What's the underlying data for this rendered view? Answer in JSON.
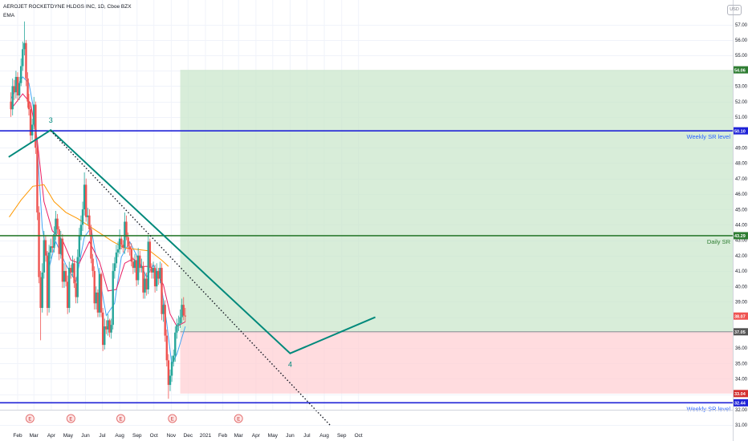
{
  "header": {
    "symbol_line": "AEROJET ROCKETDYNE HLDGS INC, 1D, Cboe BZX",
    "indicator": "EMA",
    "currency": "USD"
  },
  "colors": {
    "up": "#26a69a",
    "down": "#ef5350",
    "ema_short": "#42a5f5",
    "ema_mid": "#e91e63",
    "ema_long": "#ff9800",
    "pattern": "#00897b",
    "sr_blue": "#1e22d7",
    "sr_green": "#2e7d32",
    "profit_zone": "#c8e6c9",
    "loss_zone": "#ffcdd2"
  },
  "chart_data": {
    "type": "candlestick",
    "x_ticks": [
      "Feb",
      "Mar",
      "Apr",
      "May",
      "Jun",
      "Jul",
      "Aug",
      "Sep",
      "Oct",
      "Nov",
      "Dec",
      "2021",
      "Feb",
      "Mar",
      "Apr",
      "May",
      "Jun",
      "Jul",
      "Aug",
      "Sep",
      "Oct"
    ],
    "y_ticks": [
      31.0,
      32.0,
      33.0,
      34.0,
      35.0,
      36.0,
      37.0,
      38.0,
      39.0,
      40.0,
      41.0,
      42.0,
      43.0,
      44.0,
      45.0,
      46.0,
      47.0,
      48.0,
      49.0,
      50.0,
      51.0,
      52.0,
      53.0,
      54.0,
      55.0,
      56.0,
      57.0
    ],
    "ylim": [
      30.6,
      57.9
    ],
    "price_tags": [
      {
        "label": "54.06",
        "value": 54.06,
        "color": "#2e7d32"
      },
      {
        "label": "50.10",
        "value": 50.1,
        "color": "#1e22d7"
      },
      {
        "label": "43.29",
        "value": 43.29,
        "color": "#2e7d32"
      },
      {
        "label": "38.07",
        "value": 38.07,
        "color": "#ef5350"
      },
      {
        "label": "37.05",
        "value": 37.05,
        "color": "#555555"
      },
      {
        "label": "33.04",
        "value": 33.04,
        "color": "#d32f2f"
      },
      {
        "label": "32.44",
        "value": 32.44,
        "color": "#1e22d7"
      }
    ],
    "levels": [
      {
        "label": "Weekly SR level",
        "value": 50.1,
        "color": "#1e22d7"
      },
      {
        "label": "Daily SR",
        "value": 43.29,
        "color": "#2e7d32"
      },
      {
        "label": "Weekly SR level",
        "value": 32.44,
        "color": "#1e22d7"
      }
    ],
    "position": {
      "entry": 37.05,
      "target": 54.06,
      "stop": 33.04,
      "start": "2020-11-17",
      "end": "2021-10-31"
    },
    "wave_labels": [
      {
        "label": "3",
        "date": "2020-03-31",
        "value": 50.1
      },
      {
        "label": "4",
        "date": "2021-06-01",
        "value": 35.6
      }
    ],
    "pattern_path": [
      {
        "date": "2020-01-16",
        "value": 48.4
      },
      {
        "date": "2020-03-31",
        "value": 50.15
      },
      {
        "date": "2021-06-01",
        "value": 35.65
      },
      {
        "date": "2021-10-31",
        "value": 38.0
      }
    ],
    "trendline": [
      {
        "date": "2020-03-31",
        "value": 50.1
      },
      {
        "date": "2021-08-11",
        "value": 31.0
      }
    ],
    "earnings_markers": {
      "label": "E",
      "dates": [
        "2020-02-23",
        "2020-05-06",
        "2020-08-03",
        "2020-11-03",
        "2021-03-01"
      ]
    },
    "candles": {
      "x": [
        "2020-01-20",
        "2020-01-23",
        "2020-01-26",
        "2020-01-29",
        "2020-02-01",
        "2020-02-04",
        "2020-02-07",
        "2020-02-10",
        "2020-02-13",
        "2020-02-16",
        "2020-02-19",
        "2020-02-21",
        "2020-02-24",
        "2020-02-27",
        "2020-03-01",
        "2020-03-04",
        "2020-03-07",
        "2020-03-10",
        "2020-03-13",
        "2020-03-16",
        "2020-03-19",
        "2020-03-22",
        "2020-03-25",
        "2020-03-28",
        "2020-03-31",
        "2020-04-03",
        "2020-04-06",
        "2020-04-09",
        "2020-04-12",
        "2020-04-15",
        "2020-04-18",
        "2020-04-21",
        "2020-04-24",
        "2020-04-27",
        "2020-04-30",
        "2020-05-03",
        "2020-05-06",
        "2020-05-09",
        "2020-05-12",
        "2020-05-15",
        "2020-05-18",
        "2020-05-21",
        "2020-05-24",
        "2020-05-27",
        "2020-05-30",
        "2020-06-02",
        "2020-06-05",
        "2020-06-08",
        "2020-06-11",
        "2020-06-14",
        "2020-06-17",
        "2020-06-20",
        "2020-06-23",
        "2020-06-26",
        "2020-06-29",
        "2020-07-02",
        "2020-07-05",
        "2020-07-08",
        "2020-07-11",
        "2020-07-14",
        "2020-07-17",
        "2020-07-20",
        "2020-07-23",
        "2020-07-26",
        "2020-07-29",
        "2020-08-01",
        "2020-08-04",
        "2020-08-07",
        "2020-08-10",
        "2020-08-13",
        "2020-08-16",
        "2020-08-19",
        "2020-08-22",
        "2020-08-25",
        "2020-08-28",
        "2020-08-31",
        "2020-09-03",
        "2020-09-06",
        "2020-09-09",
        "2020-09-12",
        "2020-09-15",
        "2020-09-18",
        "2020-09-21",
        "2020-09-24",
        "2020-09-27",
        "2020-09-30",
        "2020-10-03",
        "2020-10-06",
        "2020-10-09",
        "2020-10-12",
        "2020-10-15",
        "2020-10-18",
        "2020-10-21",
        "2020-10-24",
        "2020-10-27",
        "2020-10-30",
        "2020-11-02",
        "2020-11-05",
        "2020-11-08",
        "2020-11-11",
        "2020-11-14",
        "2020-11-17",
        "2020-11-20",
        "2020-11-23",
        "2020-11-26"
      ],
      "open": [
        52.0,
        51.5,
        53.0,
        52.6,
        53.6,
        52.4,
        53.2,
        54.3,
        55.4,
        55.8,
        53.5,
        52.0,
        51.5,
        49.8,
        50.5,
        51.8,
        49.0,
        44.8,
        40.6,
        38.6,
        40.9,
        43.0,
        42.0,
        38.6,
        42.2,
        42.6,
        42.5,
        43.4,
        44.4,
        43.7,
        42.1,
        43.1,
        40.3,
        41.0,
        40.3,
        38.6,
        41.2,
        40.9,
        41.5,
        40.2,
        39.3,
        41.9,
        43.3,
        44.0,
        45.0,
        46.6,
        44.5,
        44.6,
        43.7,
        41.8,
        41.0,
        38.9,
        39.6,
        38.3,
        40.8,
        38.3,
        36.2,
        37.4,
        37.2,
        37.8,
        37.0,
        37.5,
        41.0,
        41.5,
        42.2,
        42.4,
        43.1,
        42.7,
        42.5,
        44.2,
        43.2,
        42.6,
        42.4,
        41.6,
        41.2,
        41.7,
        40.4,
        42.0,
        41.2,
        41.3,
        39.6,
        40.5,
        39.8,
        42.9,
        41.2,
        40.9,
        41.2,
        40.0,
        41.0,
        40.5,
        41.2,
        38.2,
        38.8,
        36.8,
        35.2,
        33.6,
        34.2,
        35.1,
        35.5,
        37.0,
        37.5,
        37.6,
        38.0,
        38.8,
        38.1
      ],
      "close": [
        51.5,
        53.0,
        52.6,
        53.6,
        52.4,
        53.2,
        54.3,
        55.4,
        55.8,
        53.5,
        52.0,
        51.5,
        49.8,
        50.5,
        51.8,
        49.0,
        44.8,
        40.6,
        38.6,
        40.9,
        43.0,
        42.0,
        38.6,
        42.2,
        42.6,
        42.5,
        43.4,
        44.4,
        43.7,
        42.1,
        43.1,
        40.3,
        41.0,
        40.3,
        38.6,
        41.2,
        40.9,
        41.5,
        40.2,
        39.3,
        41.9,
        43.3,
        44.0,
        45.0,
        46.6,
        44.5,
        44.6,
        43.7,
        41.8,
        41.0,
        38.9,
        39.6,
        38.3,
        40.8,
        38.3,
        36.2,
        37.4,
        37.2,
        37.8,
        37.0,
        37.5,
        41.0,
        41.5,
        42.2,
        42.4,
        43.1,
        42.7,
        42.5,
        44.2,
        43.2,
        42.6,
        42.4,
        41.6,
        41.2,
        41.7,
        40.4,
        42.0,
        41.2,
        41.3,
        39.6,
        40.5,
        39.8,
        42.9,
        41.2,
        40.9,
        41.2,
        40.0,
        41.0,
        40.5,
        41.2,
        38.2,
        38.8,
        36.8,
        35.2,
        33.6,
        34.2,
        35.1,
        35.5,
        37.0,
        37.5,
        37.6,
        38.0,
        38.8,
        38.1,
        38.07
      ],
      "high": [
        52.6,
        53.5,
        53.4,
        54.0,
        53.9,
        53.6,
        54.8,
        55.9,
        57.2,
        56.0,
        53.9,
        52.5,
        51.8,
        50.9,
        52.3,
        52.0,
        49.4,
        45.2,
        41.0,
        41.5,
        43.6,
        43.3,
        42.3,
        42.7,
        43.1,
        43.3,
        43.9,
        44.9,
        44.7,
        43.9,
        43.6,
        43.4,
        41.5,
        41.4,
        40.7,
        41.6,
        41.4,
        42.0,
        41.8,
        40.6,
        42.4,
        43.8,
        44.6,
        45.5,
        47.4,
        47.0,
        45.1,
        45.0,
        44.0,
        42.1,
        41.3,
        40.0,
        39.8,
        41.2,
        40.9,
        38.6,
        37.9,
        37.8,
        38.2,
        37.9,
        37.9,
        41.5,
        41.9,
        42.7,
        42.9,
        43.7,
        43.3,
        43.0,
        44.8,
        44.6,
        43.5,
        42.9,
        42.8,
        41.9,
        42.1,
        42.0,
        42.5,
        42.3,
        41.8,
        41.6,
        40.9,
        40.9,
        43.3,
        43.1,
        41.5,
        41.6,
        41.4,
        41.5,
        41.2,
        41.6,
        41.5,
        39.2,
        39.1,
        37.2,
        35.6,
        34.6,
        35.5,
        35.9,
        37.4,
        37.9,
        38.1,
        38.5,
        39.2,
        39.3,
        38.6
      ],
      "low": [
        51.0,
        51.1,
        52.1,
        52.2,
        52.0,
        52.1,
        53.0,
        54.0,
        55.0,
        53.0,
        51.6,
        51.1,
        49.3,
        49.5,
        50.2,
        48.6,
        44.3,
        40.2,
        36.5,
        38.3,
        40.5,
        41.6,
        38.1,
        38.3,
        41.8,
        42.2,
        42.2,
        43.0,
        43.4,
        41.7,
        41.8,
        39.9,
        39.9,
        40.0,
        38.2,
        38.3,
        40.5,
        40.6,
        39.9,
        38.9,
        38.9,
        41.6,
        43.0,
        43.6,
        44.6,
        44.2,
        44.0,
        43.3,
        41.5,
        40.6,
        38.5,
        38.5,
        38.0,
        38.0,
        38.0,
        35.8,
        35.9,
        36.9,
        36.8,
        36.7,
        36.6,
        37.2,
        40.5,
        41.2,
        41.9,
        42.1,
        42.4,
        42.2,
        42.1,
        43.0,
        42.2,
        42.0,
        41.3,
        40.8,
        40.9,
        40.0,
        40.1,
        40.9,
        40.9,
        39.2,
        39.2,
        39.4,
        39.5,
        40.9,
        40.5,
        40.5,
        39.6,
        39.7,
        40.1,
        40.2,
        37.8,
        37.7,
        36.4,
        34.8,
        32.7,
        33.2,
        33.8,
        34.8,
        35.1,
        36.6,
        37.1,
        37.3,
        37.6,
        37.8,
        37.7
      ]
    },
    "ema_series": [
      {
        "color": "#42a5f5",
        "date": [
          "2020-01-20",
          "2020-02-10",
          "2020-02-21",
          "2020-03-04",
          "2020-03-16",
          "2020-03-28",
          "2020-04-09",
          "2020-04-27",
          "2020-05-15",
          "2020-05-30",
          "2020-06-11",
          "2020-06-26",
          "2020-07-08",
          "2020-07-23",
          "2020-08-04",
          "2020-08-19",
          "2020-09-03",
          "2020-09-18",
          "2020-09-30",
          "2020-10-12",
          "2020-10-24",
          "2020-11-02",
          "2020-11-11",
          "2020-11-26"
        ],
        "value": [
          52.2,
          53.6,
          53.2,
          50.8,
          43.8,
          41.2,
          42.9,
          41.4,
          40.3,
          43.2,
          43.8,
          40.6,
          38.1,
          38.9,
          41.9,
          42.9,
          41.8,
          40.6,
          41.4,
          40.6,
          37.6,
          34.9,
          35.6,
          37.4
        ]
      },
      {
        "color": "#e91e63",
        "date": [
          "2020-01-20",
          "2020-02-10",
          "2020-02-24",
          "2020-03-07",
          "2020-03-19",
          "2020-04-03",
          "2020-04-21",
          "2020-05-06",
          "2020-05-21",
          "2020-06-08",
          "2020-06-26",
          "2020-07-11",
          "2020-07-26",
          "2020-08-10",
          "2020-08-25",
          "2020-09-09",
          "2020-09-24",
          "2020-10-06",
          "2020-10-18",
          "2020-10-30",
          "2020-11-11",
          "2020-11-26"
        ],
        "value": [
          51.5,
          52.5,
          51.9,
          49.5,
          45.5,
          43.6,
          43.0,
          41.7,
          41.5,
          42.9,
          41.6,
          39.7,
          39.8,
          41.5,
          41.8,
          41.3,
          41.3,
          40.9,
          40.1,
          38.2,
          37.4,
          37.7
        ]
      },
      {
        "color": "#ff9800",
        "date": [
          "2020-01-17",
          "2020-02-07",
          "2020-02-28",
          "2020-03-19",
          "2020-04-06",
          "2020-04-27",
          "2020-05-18",
          "2020-06-08",
          "2020-06-29",
          "2020-07-20",
          "2020-08-10",
          "2020-08-31",
          "2020-09-24",
          "2020-10-15",
          "2020-10-27"
        ],
        "value": [
          44.5,
          45.6,
          46.5,
          46.6,
          45.5,
          44.8,
          44.4,
          43.9,
          43.4,
          42.9,
          42.5,
          42.4,
          42.3,
          41.7,
          41.3
        ]
      }
    ]
  }
}
